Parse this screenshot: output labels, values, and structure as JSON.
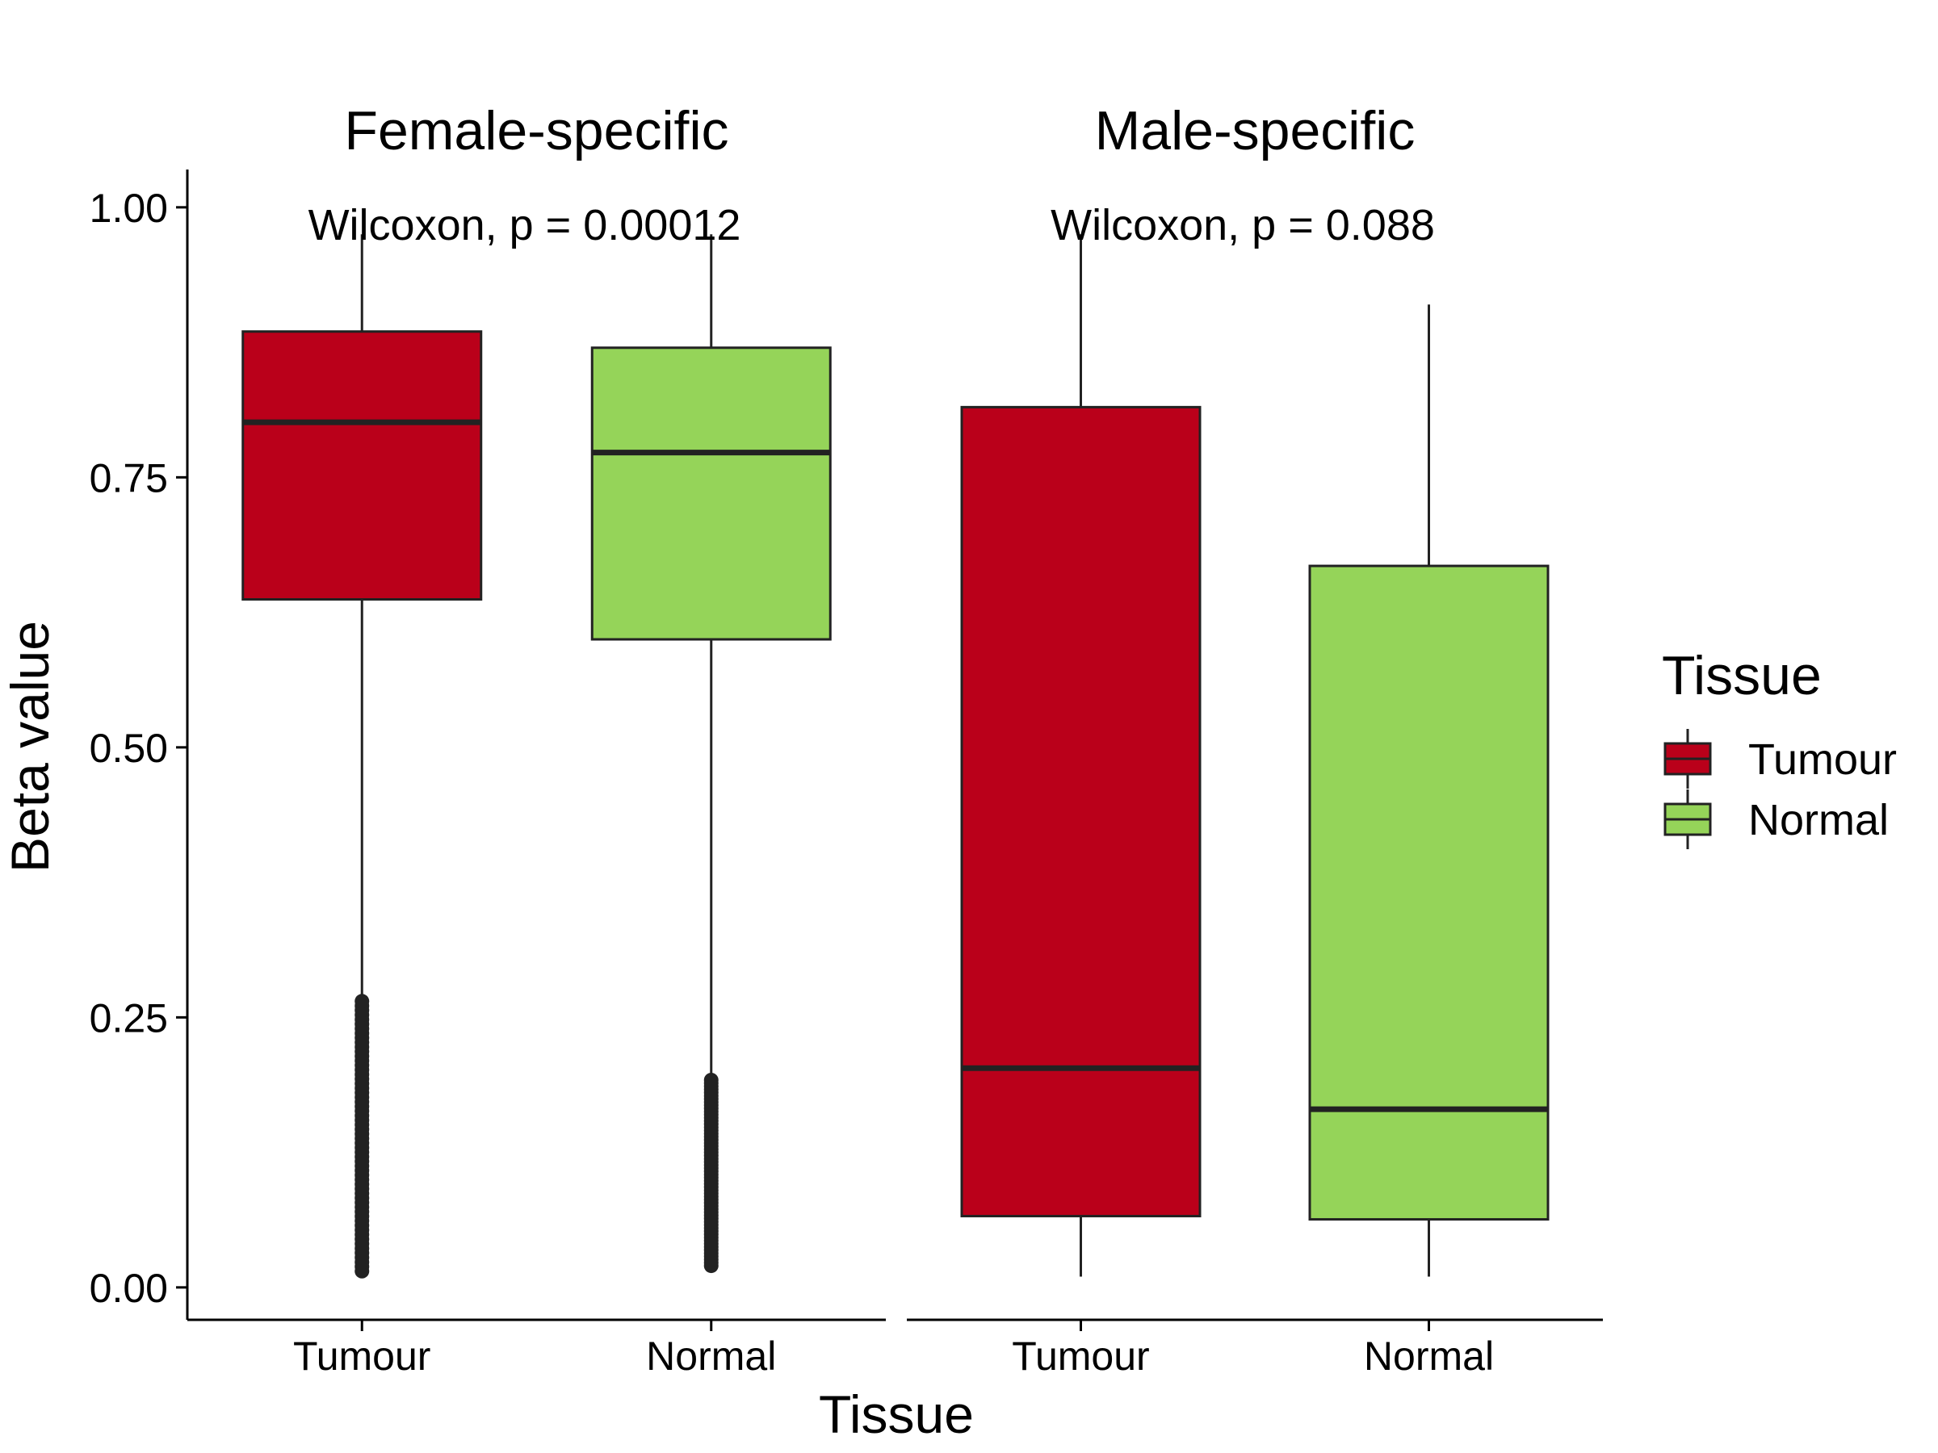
{
  "chart_data": {
    "type": "box",
    "xlabel": "Tissue",
    "ylabel": "Beta value",
    "ylim": [
      -0.03,
      1.035
    ],
    "y_ticks": [
      "0.00",
      "0.25",
      "0.50",
      "0.75",
      "1.00"
    ],
    "categories": [
      "Tumour",
      "Normal"
    ],
    "legend": {
      "title": "Tissue",
      "position": "right",
      "entries": [
        {
          "label": "Tumour",
          "color": "#BA001A"
        },
        {
          "label": "Normal",
          "color": "#95D459"
        }
      ]
    },
    "panels": [
      {
        "title": "Female-specific",
        "annotation": "Wilcoxon, p = 0.00012",
        "boxes": [
          {
            "category": "Tumour",
            "color": "#BA001A",
            "whisker_low": 0.267,
            "q1": 0.637,
            "median": 0.801,
            "q3": 0.885,
            "whisker_high": 0.975,
            "outliers_range": [
              0.015,
              0.265
            ]
          },
          {
            "category": "Normal",
            "color": "#95D459",
            "whisker_low": 0.194,
            "q1": 0.6,
            "median": 0.773,
            "q3": 0.87,
            "whisker_high": 0.975,
            "outliers_range": [
              0.02,
              0.192
            ]
          }
        ]
      },
      {
        "title": "Male-specific",
        "annotation": "Wilcoxon, p = 0.088",
        "boxes": [
          {
            "category": "Tumour",
            "color": "#BA001A",
            "whisker_low": 0.01,
            "q1": 0.066,
            "median": 0.203,
            "q3": 0.815,
            "whisker_high": 0.975,
            "outliers_range": null
          },
          {
            "category": "Normal",
            "color": "#95D459",
            "whisker_low": 0.01,
            "q1": 0.063,
            "median": 0.165,
            "q3": 0.668,
            "whisker_high": 0.91,
            "outliers_range": null
          }
        ]
      }
    ]
  }
}
